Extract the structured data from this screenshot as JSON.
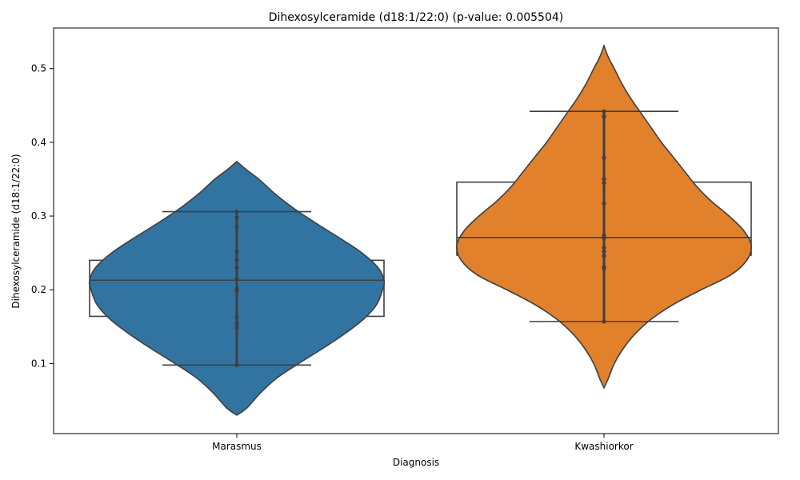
{
  "chart_data": {
    "type": "violin",
    "title": "Dihexosylceramide (d18:1/22:0) (p-value: 0.005504)",
    "xlabel": "Diagnosis",
    "ylabel": "Dihexosylceramide (d18:1/22:0)",
    "ylim": [
      0.005,
      0.555
    ],
    "yticks": [
      0.1,
      0.2,
      0.3,
      0.4,
      0.5
    ],
    "ytick_labels": [
      "0.1",
      "0.2",
      "0.3",
      "0.4",
      "0.5"
    ],
    "categories": [
      "Marasmus",
      "Kwashiorkor"
    ],
    "colors": [
      "#3274a1",
      "#e1812c"
    ],
    "edge_color": "#3f3f3f",
    "groups": [
      {
        "category": "Marasmus",
        "min": 0.098,
        "q1": 0.164,
        "median": 0.213,
        "q3": 0.24,
        "max": 0.306,
        "violin_low": 0.03,
        "violin_high": 0.374,
        "points": [
          0.098,
          0.148,
          0.152,
          0.155,
          0.163,
          0.198,
          0.201,
          0.215,
          0.23,
          0.24,
          0.252,
          0.285,
          0.298,
          0.306
        ],
        "violin_profile": [
          [
            0.03,
            0.0
          ],
          [
            0.04,
            0.07
          ],
          [
            0.06,
            0.16
          ],
          [
            0.08,
            0.27
          ],
          [
            0.1,
            0.42
          ],
          [
            0.12,
            0.58
          ],
          [
            0.14,
            0.73
          ],
          [
            0.16,
            0.86
          ],
          [
            0.18,
            0.95
          ],
          [
            0.2,
            0.99
          ],
          [
            0.213,
            1.0
          ],
          [
            0.23,
            0.96
          ],
          [
            0.25,
            0.85
          ],
          [
            0.27,
            0.7
          ],
          [
            0.29,
            0.54
          ],
          [
            0.31,
            0.39
          ],
          [
            0.33,
            0.26
          ],
          [
            0.35,
            0.15
          ],
          [
            0.362,
            0.07
          ],
          [
            0.374,
            0.0
          ]
        ]
      },
      {
        "category": "Kwashiorkor",
        "min": 0.157,
        "q1": 0.247,
        "median": 0.271,
        "q3": 0.346,
        "max": 0.442,
        "violin_low": 0.067,
        "violin_high": 0.531,
        "points": [
          0.157,
          0.229,
          0.231,
          0.246,
          0.252,
          0.257,
          0.27,
          0.274,
          0.317,
          0.345,
          0.35,
          0.379,
          0.435,
          0.442
        ],
        "violin_profile": [
          [
            0.067,
            0.0
          ],
          [
            0.08,
            0.03
          ],
          [
            0.1,
            0.07
          ],
          [
            0.12,
            0.13
          ],
          [
            0.14,
            0.21
          ],
          [
            0.16,
            0.32
          ],
          [
            0.18,
            0.47
          ],
          [
            0.2,
            0.66
          ],
          [
            0.22,
            0.86
          ],
          [
            0.24,
            0.97
          ],
          [
            0.26,
            1.0
          ],
          [
            0.28,
            0.95
          ],
          [
            0.3,
            0.85
          ],
          [
            0.32,
            0.73
          ],
          [
            0.34,
            0.63
          ],
          [
            0.36,
            0.55
          ],
          [
            0.38,
            0.47
          ],
          [
            0.4,
            0.39
          ],
          [
            0.42,
            0.32
          ],
          [
            0.44,
            0.25
          ],
          [
            0.46,
            0.18
          ],
          [
            0.48,
            0.12
          ],
          [
            0.5,
            0.07
          ],
          [
            0.515,
            0.03
          ],
          [
            0.531,
            0.0
          ]
        ]
      }
    ]
  }
}
